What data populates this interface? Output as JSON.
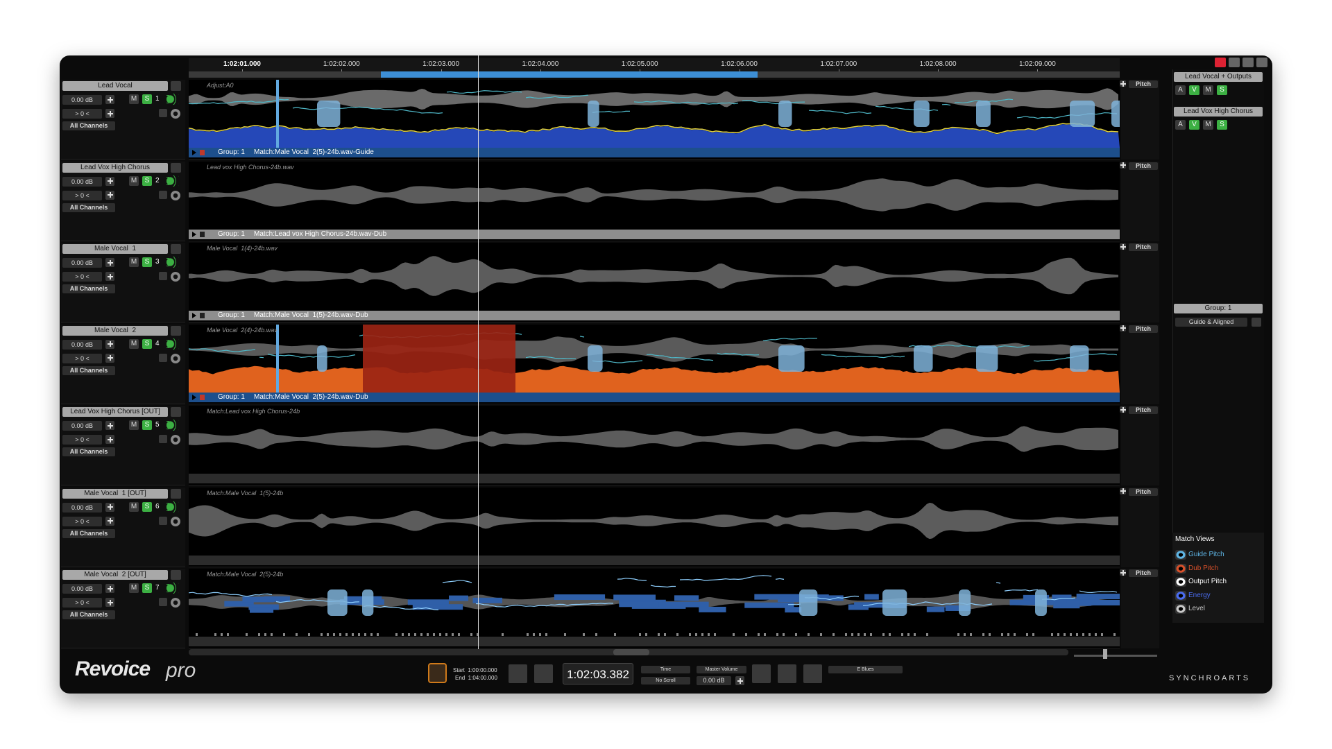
{
  "ruler": {
    "ticks": [
      "1:02:01.000",
      "1:02:02.000",
      "1:02:03.000",
      "1:02:04.000",
      "1:02:05.000",
      "1:02:06.000",
      "1:02:07.000",
      "1:02:08.000",
      "1:02:09.000"
    ]
  },
  "tracks": [
    {
      "name": "Lead Vocal",
      "gain": "0.00 dB",
      "pan": "> 0 <",
      "channels": "All Channels",
      "mute": "M",
      "solo": "S",
      "number": "1",
      "pitch": "Pitch",
      "clip_label": "Adjust:A0",
      "group": "Group: 1",
      "match": "Match:Male Vocal  2(5)-24b.wav-Guide",
      "bar_color": "#1d4f8c"
    },
    {
      "name": "Lead Vox High Chorus",
      "gain": "0.00 dB",
      "pan": "> 0 <",
      "channels": "All Channels",
      "mute": "M",
      "solo": "S",
      "number": "2",
      "pitch": "Pitch",
      "clip_label": "Lead vox High Chorus-24b.wav",
      "group": "Group: 1",
      "match": "Match:Lead vox High Chorus-24b.wav-Dub",
      "bar_color": "#8e8e8e"
    },
    {
      "name": "Male Vocal  1",
      "gain": "0.00 dB",
      "pan": "> 0 <",
      "channels": "All Channels",
      "mute": "M",
      "solo": "S",
      "number": "3",
      "pitch": "Pitch",
      "clip_label": "Male Vocal  1(4)-24b.wav",
      "group": "Group: 1",
      "match": "Match:Male Vocal  1(5)-24b.wav-Dub",
      "bar_color": "#8e8e8e"
    },
    {
      "name": "Male Vocal  2",
      "gain": "0.00 dB",
      "pan": "> 0 <",
      "channels": "All Channels",
      "mute": "M",
      "solo": "S",
      "number": "4",
      "pitch": "Pitch",
      "clip_label": "Male Vocal  2(4)-24b.wav",
      "group": "Group: 1",
      "match": "Match:Male Vocal  2(5)-24b.wav-Dub",
      "bar_color": "#1d4f8c"
    },
    {
      "name": "Lead Vox High Chorus [OUT]",
      "gain": "0.00 dB",
      "pan": "> 0 <",
      "channels": "All Channels",
      "mute": "M",
      "solo": "S",
      "number": "5",
      "pitch": "Pitch",
      "clip_label": "Match:Lead vox High Chorus-24b",
      "bar_color": "#2c2c2c"
    },
    {
      "name": "Male Vocal  1 [OUT]",
      "gain": "0.00 dB",
      "pan": "> 0 <",
      "channels": "All Channels",
      "mute": "M",
      "solo": "S",
      "number": "6",
      "pitch": "Pitch",
      "clip_label": "Match:Male Vocal  1(5)-24b",
      "bar_color": "#2c2c2c"
    },
    {
      "name": "Male Vocal  2 [OUT]",
      "gain": "0.00 dB",
      "pan": "> 0 <",
      "channels": "All Channels",
      "mute": "M",
      "solo": "S",
      "number": "7",
      "pitch": "Pitch",
      "clip_label": "Match:Male Vocal  2(5)-24b",
      "bar_color": "#2c2c2c"
    }
  ],
  "output_groups": [
    {
      "name": "Lead Vocal + Outputs",
      "buttons": [
        "A",
        "V",
        "M",
        "S"
      ]
    },
    {
      "name": "Lead Vox High Chorus",
      "buttons": [
        "A",
        "V",
        "M",
        "S"
      ]
    }
  ],
  "group_panel": {
    "title": "Group: 1",
    "mode": "Guide & Aligned"
  },
  "match_views": {
    "title": "Match Views",
    "items": [
      {
        "label": "Guide Pitch",
        "color": "#5fb6e6"
      },
      {
        "label": "Dub Pitch",
        "color": "#d8502a"
      },
      {
        "label": "Output Pitch",
        "color": "#ffffff"
      },
      {
        "label": "Energy",
        "color": "#4a6cf0"
      },
      {
        "label": "Level",
        "color": "#c8c8c8"
      }
    ]
  },
  "transport": {
    "logo": "Revoice",
    "logo_suffix": "pro",
    "start": "Start  1:00:00.000",
    "end": "End  1:04:00.000",
    "time": "1:02:03.382",
    "time_mode": "Time",
    "scroll_mode": "No Scroll",
    "master_label": "Master Volume",
    "master_value": "0.00 dB",
    "scale": "E Blues",
    "brand": "SYNCHROARTS"
  }
}
